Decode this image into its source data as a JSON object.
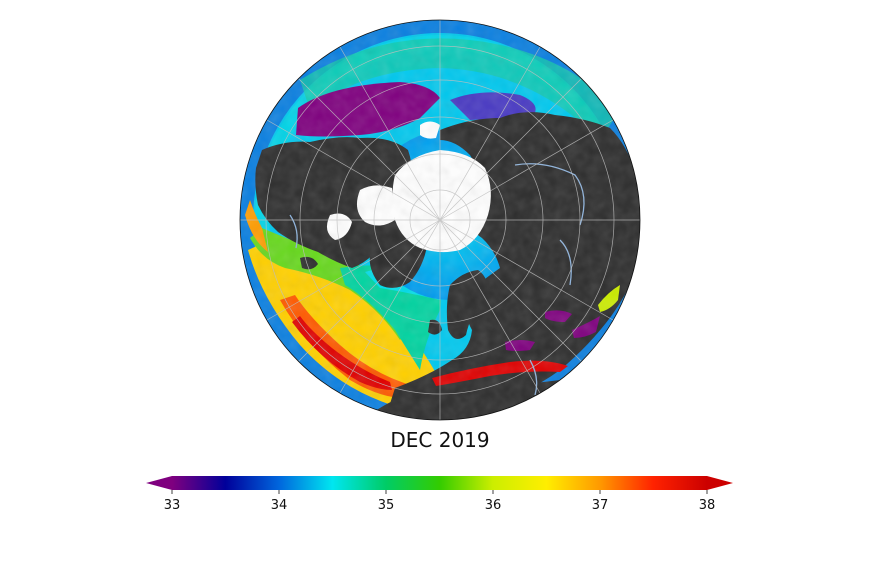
{
  "title": "DEC 2019",
  "colorbar": {
    "min": 33,
    "max": 38,
    "ticks": [
      "33",
      "34",
      "35",
      "36",
      "37",
      "38"
    ],
    "extend": "both",
    "colormap": "nipy_spectral-like",
    "stops": [
      "#7f007f",
      "#00009a",
      "#0066dd",
      "#00e6f0",
      "#00cc66",
      "#33cc00",
      "#ccee00",
      "#ffee00",
      "#ff9900",
      "#ff2200",
      "#cc0000"
    ]
  },
  "map": {
    "projection": "orthographic",
    "center": "North Pole",
    "land_color": "#2d2d2d",
    "ice_color": "#ffffff",
    "graticule_color": "#bfbfbf"
  }
}
